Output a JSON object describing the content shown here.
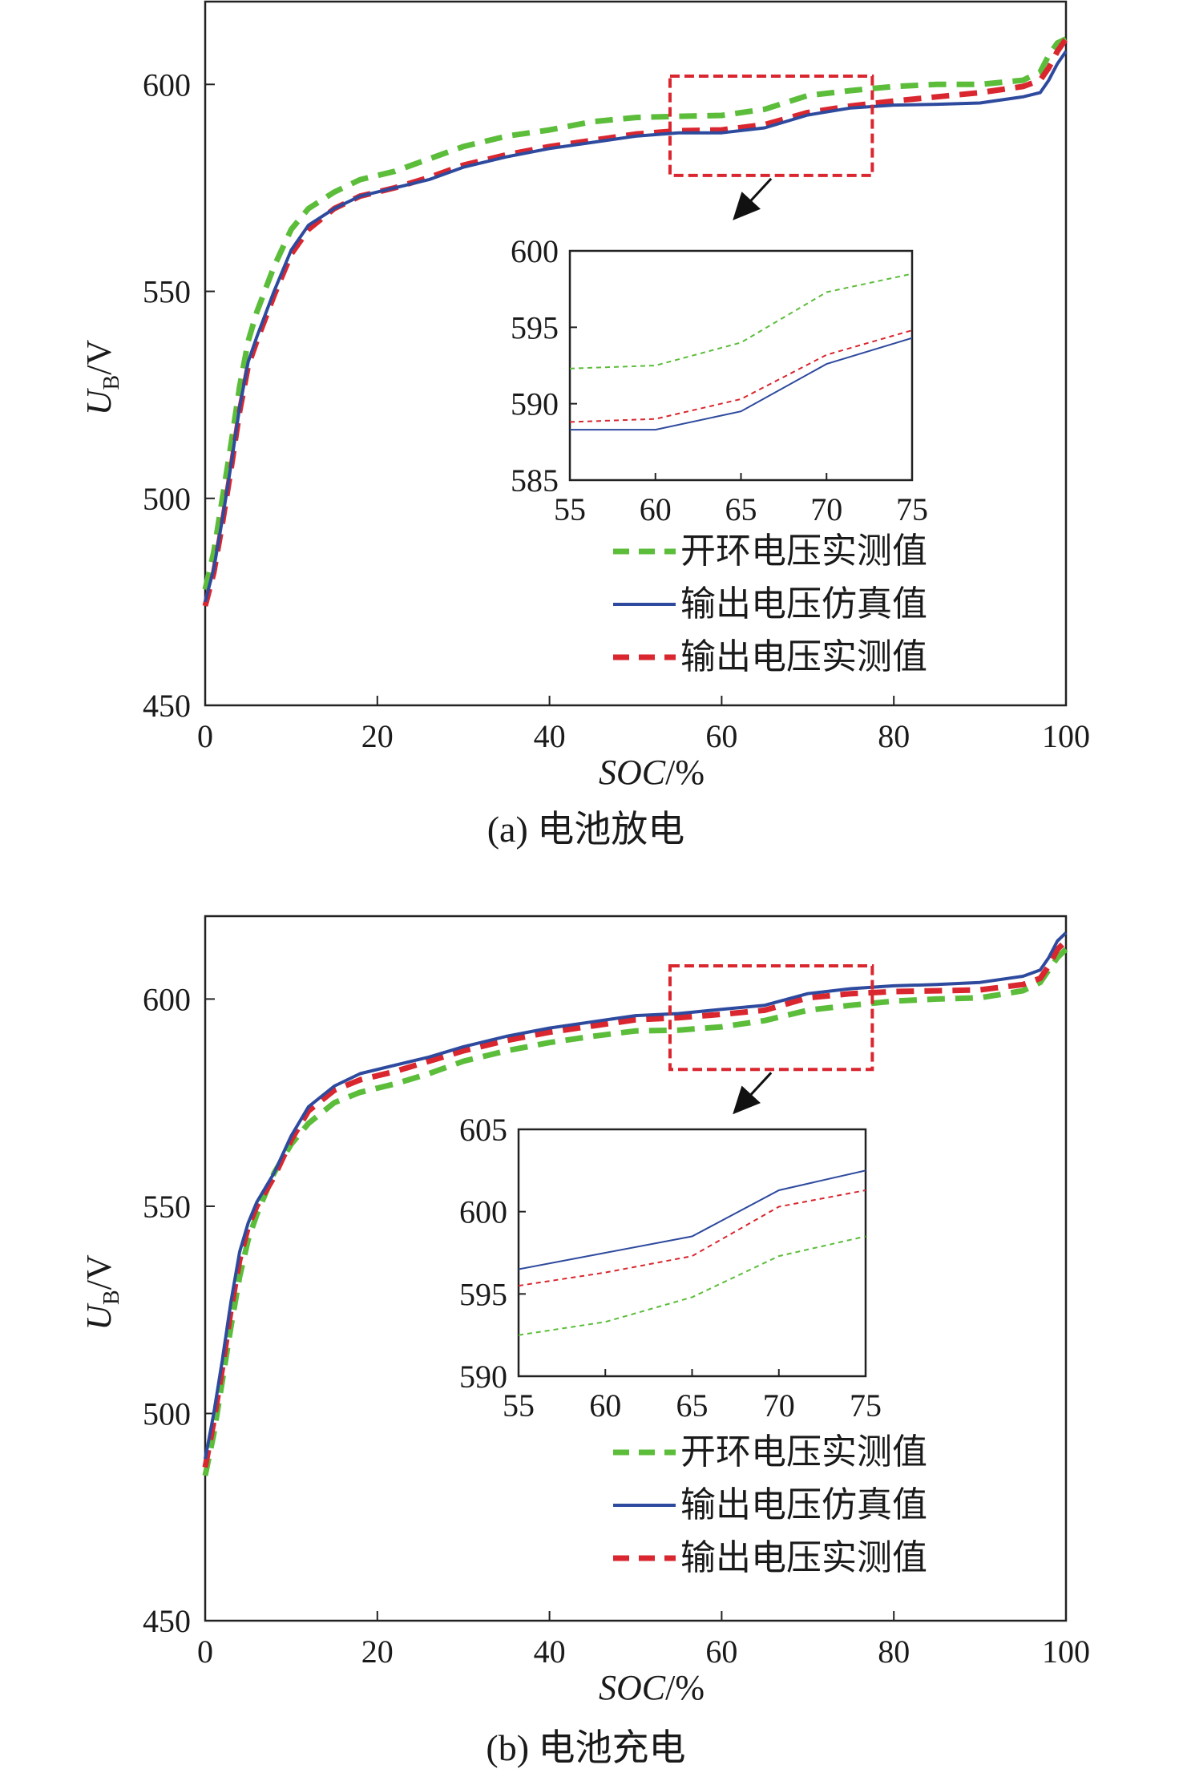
{
  "chart_data": [
    {
      "type": "line",
      "caption": "(a) 电池放电",
      "ylabel_main": "U",
      "ylabel_sub": "B",
      "ylabel_unit": "/V",
      "xlabel_main": "SOC",
      "xlabel_unit": "/%",
      "xlim": [
        0,
        100
      ],
      "ylim": [
        450,
        620
      ],
      "xticks": [
        0,
        20,
        40,
        60,
        80,
        100
      ],
      "yticks": [
        450,
        500,
        550,
        600
      ],
      "series": [
        {
          "name": "开环电压实测值",
          "color": "#5bbd3a",
          "dash": "dash",
          "x": [
            0,
            1,
            2,
            3,
            4,
            5,
            6,
            8,
            10,
            12,
            15,
            18,
            22,
            26,
            30,
            35,
            40,
            45,
            50,
            55,
            60,
            65,
            70,
            75,
            80,
            85,
            90,
            95,
            97,
            98,
            99,
            100
          ],
          "y": [
            478,
            487,
            500,
            513,
            527,
            538,
            545,
            556,
            565,
            570,
            574,
            577,
            579,
            582,
            585,
            587.5,
            589,
            591,
            592,
            592.3,
            592.5,
            594,
            597.3,
            598.5,
            599.5,
            600,
            600,
            601,
            603,
            607,
            610,
            611
          ]
        },
        {
          "name": "输出电压仿真值",
          "color": "#2e4a9e",
          "dash": "solid",
          "x": [
            0,
            1,
            2,
            3,
            4,
            5,
            6,
            8,
            10,
            12,
            15,
            18,
            22,
            26,
            30,
            35,
            40,
            45,
            50,
            55,
            60,
            65,
            70,
            75,
            80,
            85,
            90,
            95,
            97,
            98,
            99,
            100
          ],
          "y": [
            475,
            483,
            495,
            508,
            522,
            533,
            539,
            550,
            560,
            566,
            570,
            573,
            575,
            577,
            580,
            582.5,
            584.5,
            586,
            587.5,
            588.3,
            588.3,
            589.5,
            592.6,
            594.3,
            595,
            595.2,
            595.5,
            597,
            598,
            601,
            605,
            608
          ]
        },
        {
          "name": "输出电压实测值",
          "color": "#d9262f",
          "dash": "dash",
          "x": [
            0,
            1,
            2,
            3,
            4,
            5,
            6,
            8,
            10,
            12,
            15,
            18,
            22,
            26,
            30,
            35,
            40,
            45,
            50,
            55,
            60,
            65,
            70,
            75,
            80,
            85,
            90,
            95,
            97,
            98,
            99,
            100
          ],
          "y": [
            474,
            482,
            494,
            507,
            521,
            532,
            538,
            549,
            559,
            565,
            570,
            573,
            575,
            577.5,
            580.5,
            583,
            585,
            586.5,
            588,
            588.8,
            589,
            590.3,
            593.2,
            594.8,
            596,
            597,
            598,
            599.5,
            601,
            604,
            608,
            611
          ]
        }
      ],
      "inset": {
        "xlim": [
          55,
          75
        ],
        "ylim": [
          585,
          600
        ],
        "xticks": [
          55,
          60,
          65,
          70,
          75
        ],
        "yticks": [
          585,
          590,
          595,
          600
        ],
        "zoom_box": {
          "x": [
            54,
            77.5
          ],
          "y": [
            578,
            602
          ]
        }
      },
      "legend": {
        "position": "inside-lower-right"
      }
    },
    {
      "type": "line",
      "caption": "(b) 电池充电",
      "ylabel_main": "U",
      "ylabel_sub": "B",
      "ylabel_unit": "/V",
      "xlabel_main": "SOC",
      "xlabel_unit": "/%",
      "xlim": [
        0,
        100
      ],
      "ylim": [
        450,
        620
      ],
      "xticks": [
        0,
        20,
        40,
        60,
        80,
        100
      ],
      "yticks": [
        450,
        500,
        550,
        600
      ],
      "series": [
        {
          "name": "开环电压实测值",
          "color": "#5bbd3a",
          "dash": "dash",
          "x": [
            0,
            1,
            2,
            3,
            4,
            5,
            6,
            8,
            10,
            12,
            15,
            18,
            22,
            26,
            30,
            35,
            40,
            45,
            50,
            55,
            60,
            65,
            70,
            75,
            80,
            85,
            90,
            95,
            97,
            98,
            99,
            100
          ],
          "y": [
            485,
            495,
            508,
            521,
            533,
            542,
            548,
            558,
            565,
            570,
            575,
            577.5,
            579.5,
            582,
            585,
            587.5,
            589.5,
            591,
            592.3,
            592.5,
            593.3,
            594.8,
            597.3,
            598.5,
            599.5,
            600,
            600.3,
            602,
            604,
            607,
            610,
            612
          ]
        },
        {
          "name": "输出电压仿真值",
          "color": "#2e4a9e",
          "dash": "solid",
          "x": [
            0,
            1,
            2,
            3,
            4,
            5,
            6,
            8,
            10,
            12,
            15,
            18,
            22,
            26,
            30,
            35,
            40,
            45,
            50,
            55,
            60,
            65,
            70,
            75,
            80,
            85,
            90,
            95,
            97,
            98,
            99,
            100
          ],
          "y": [
            489,
            500,
            513,
            527,
            539,
            546,
            551,
            558,
            567,
            574,
            579,
            582,
            584,
            586,
            588.5,
            591,
            593,
            594.5,
            596,
            596.5,
            597.5,
            598.5,
            601.3,
            602.5,
            603.2,
            603.5,
            604,
            605.5,
            607,
            610,
            614,
            616
          ]
        },
        {
          "name": "输出电压实测值",
          "color": "#d9262f",
          "dash": "dash",
          "x": [
            0,
            1,
            2,
            3,
            4,
            5,
            6,
            8,
            10,
            12,
            15,
            18,
            22,
            26,
            30,
            35,
            40,
            45,
            50,
            55,
            60,
            65,
            70,
            75,
            80,
            85,
            90,
            95,
            97,
            98,
            99,
            100
          ],
          "y": [
            487,
            498,
            511,
            525,
            537,
            545,
            550,
            557,
            566,
            573,
            578,
            580.5,
            582.5,
            585,
            587.5,
            590,
            592,
            593.5,
            595,
            595.5,
            596.3,
            597.3,
            600.3,
            601.3,
            601.8,
            602,
            602.2,
            603.5,
            605,
            608,
            612,
            614
          ]
        }
      ],
      "inset": {
        "xlim": [
          55,
          75
        ],
        "ylim": [
          590,
          605
        ],
        "xticks": [
          55,
          60,
          65,
          70,
          75
        ],
        "yticks": [
          590,
          595,
          600,
          605
        ],
        "zoom_box": {
          "x": [
            54,
            77.5
          ],
          "y": [
            583,
            608
          ]
        }
      },
      "legend": {
        "position": "inside-lower-right"
      }
    }
  ]
}
